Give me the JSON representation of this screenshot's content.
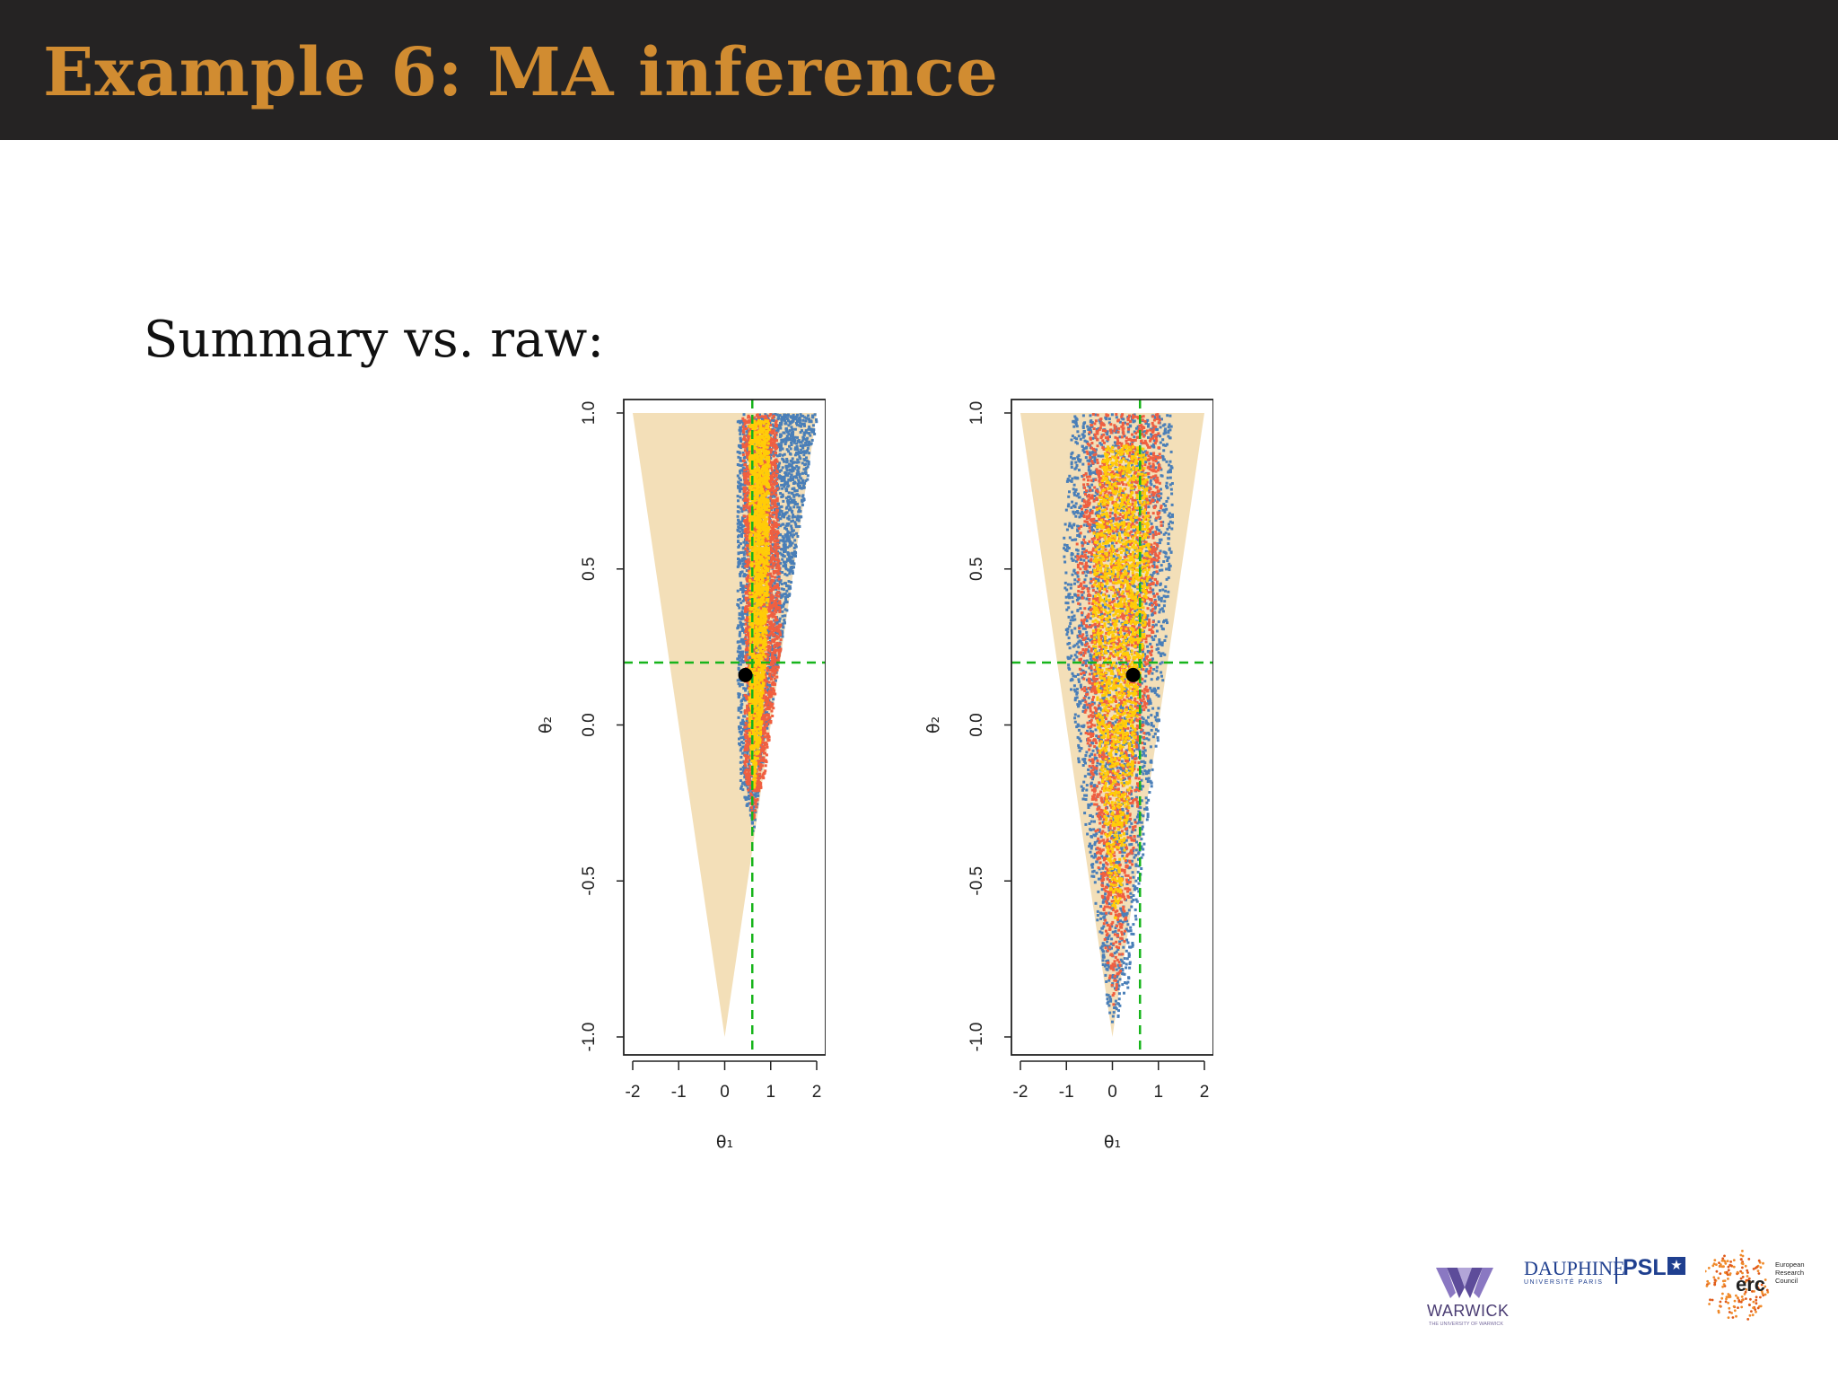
{
  "slide": {
    "title": "Example 6: MA inference",
    "subtitle": "Summary vs. raw:"
  },
  "colors": {
    "title_bar": "#252323",
    "title_text": "#d18c31",
    "prior_region": "#f3dfb8",
    "points_blue": "#4a7fb8",
    "points_red": "#f05f40",
    "points_yellow": "#ffcc08",
    "reference_lines": "#17b41b",
    "true_value": "#000000"
  },
  "chart_data": [
    {
      "type": "scatter",
      "title": "",
      "xlabel": "θ₁",
      "ylabel": "θ₂",
      "xlim": [
        -2,
        2
      ],
      "ylim": [
        -1,
        1
      ],
      "xticks": [
        "-2",
        "-1",
        "0",
        "1",
        "2"
      ],
      "yticks": [
        "-1.0",
        "-0.5",
        "0.0",
        "0.5",
        "1.0"
      ],
      "prior_region": {
        "shape": "triangle",
        "vertices": [
          [
            -2,
            1
          ],
          [
            2,
            1
          ],
          [
            0,
            -1
          ]
        ]
      },
      "reference_lines": {
        "x": 0.6,
        "y": 0.2,
        "style": "dashed"
      },
      "true_value": {
        "x": 0.45,
        "y": 0.16
      },
      "point_clouds": [
        {
          "color": "blue",
          "vertices": [
            [
              0.25,
              1.0
            ],
            [
              2.0,
              1.0
            ],
            [
              0.72,
              -0.2
            ],
            [
              0.6,
              -0.35
            ],
            [
              0.52,
              -0.28
            ],
            [
              0.3,
              -0.2
            ],
            [
              0.25,
              0.2
            ]
          ]
        },
        {
          "color": "red",
          "vertices": [
            [
              0.35,
              1.0
            ],
            [
              1.1,
              1.0
            ],
            [
              1.2,
              0.25
            ],
            [
              0.85,
              -0.15
            ],
            [
              0.6,
              -0.3
            ],
            [
              0.4,
              -0.15
            ],
            [
              0.42,
              0.5
            ]
          ]
        },
        {
          "color": "yellow",
          "vertices": [
            [
              0.5,
              0.98
            ],
            [
              0.95,
              0.98
            ],
            [
              0.92,
              0.4
            ],
            [
              0.78,
              0.0
            ],
            [
              0.6,
              -0.22
            ],
            [
              0.5,
              0.0
            ],
            [
              0.52,
              0.5
            ]
          ]
        }
      ],
      "grid": false,
      "legend": "none"
    },
    {
      "type": "scatter",
      "title": "",
      "xlabel": "θ₁",
      "ylabel": "θ₂",
      "xlim": [
        -2,
        2
      ],
      "ylim": [
        -1,
        1
      ],
      "xticks": [
        "-2",
        "-1",
        "0",
        "1",
        "2"
      ],
      "yticks": [
        "-1.0",
        "-0.5",
        "0.0",
        "0.5",
        "1.0"
      ],
      "prior_region": {
        "shape": "triangle",
        "vertices": [
          [
            -2,
            1
          ],
          [
            2,
            1
          ],
          [
            0,
            -1
          ]
        ]
      },
      "reference_lines": {
        "x": 0.6,
        "y": 0.2,
        "style": "dashed"
      },
      "true_value": {
        "x": 0.45,
        "y": 0.16
      },
      "point_clouds": [
        {
          "color": "blue",
          "vertices": [
            [
              -0.9,
              1.0
            ],
            [
              1.25,
              1.0
            ],
            [
              1.3,
              0.6
            ],
            [
              1.0,
              0.0
            ],
            [
              0.3,
              -0.85
            ],
            [
              0.0,
              -0.97
            ],
            [
              -0.2,
              -0.85
            ],
            [
              -1.0,
              0.2
            ],
            [
              -1.1,
              0.6
            ]
          ]
        },
        {
          "color": "red",
          "vertices": [
            [
              -0.5,
              1.0
            ],
            [
              1.0,
              1.0
            ],
            [
              1.05,
              0.6
            ],
            [
              0.7,
              0.0
            ],
            [
              0.2,
              -0.75
            ],
            [
              0.0,
              -0.9
            ],
            [
              -0.15,
              -0.75
            ],
            [
              -0.75,
              0.2
            ],
            [
              -0.8,
              0.6
            ]
          ]
        },
        {
          "color": "yellow",
          "vertices": [
            [
              -0.2,
              0.9
            ],
            [
              0.7,
              0.9
            ],
            [
              0.8,
              0.5
            ],
            [
              0.5,
              0.0
            ],
            [
              0.15,
              -0.55
            ],
            [
              0.0,
              -0.65
            ],
            [
              -0.1,
              -0.5
            ],
            [
              -0.45,
              0.2
            ],
            [
              -0.45,
              0.6
            ]
          ]
        }
      ],
      "grid": false,
      "legend": "none"
    }
  ],
  "logos": {
    "warwick": {
      "name": "WARWICK",
      "subtitle": "THE UNIVERSITY OF WARWICK"
    },
    "dauphine": {
      "name": "DAUPHINE",
      "subtitle": "UNIVERSITÉ PARIS"
    },
    "psl": {
      "name": "PSL",
      "star": "★"
    },
    "erc": {
      "name": "erc",
      "lines": [
        "European",
        "Research",
        "Council"
      ]
    }
  }
}
